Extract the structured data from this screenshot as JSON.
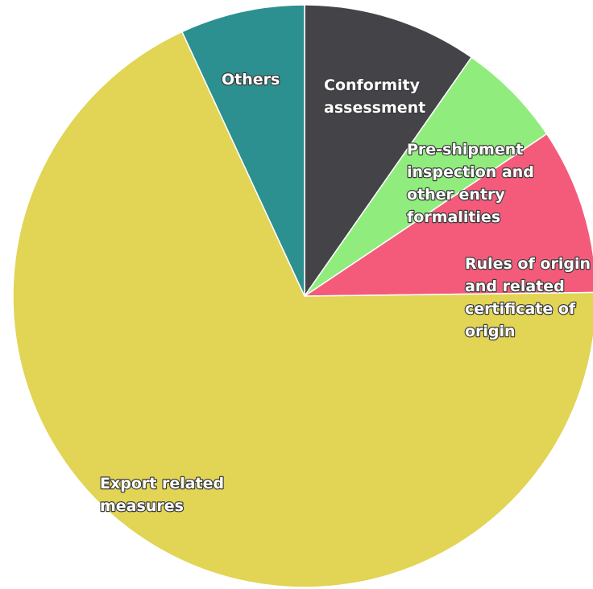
{
  "chart_data": {
    "type": "pie",
    "title": "",
    "start_angle_deg": 0,
    "direction": "clockwise",
    "legend": "none",
    "slices": [
      {
        "label": "Conformity assessment",
        "label_lines": [
          "Conformity",
          "assessment"
        ],
        "value": 9.7,
        "color": "#434348"
      },
      {
        "label": "Pre-shipment inspection and other entry formalities",
        "label_lines": [
          "Pre-shipment",
          "inspection and",
          "other entry",
          "formalities"
        ],
        "value": 5.9,
        "color": "#90ed7d"
      },
      {
        "label": "Rules of origin and related certificate of origin",
        "label_lines": [
          "Rules of origin",
          "and related",
          "certificate of",
          "origin"
        ],
        "value": 9.2,
        "color": "#f45b7b"
      },
      {
        "label": "Export related measures",
        "label_lines": [
          "Export related",
          "measures"
        ],
        "value": 68.3,
        "color": "#e2d454"
      },
      {
        "label": "Others",
        "label_lines": [
          "Others"
        ],
        "value": 6.9,
        "color": "#2b908f"
      }
    ]
  }
}
